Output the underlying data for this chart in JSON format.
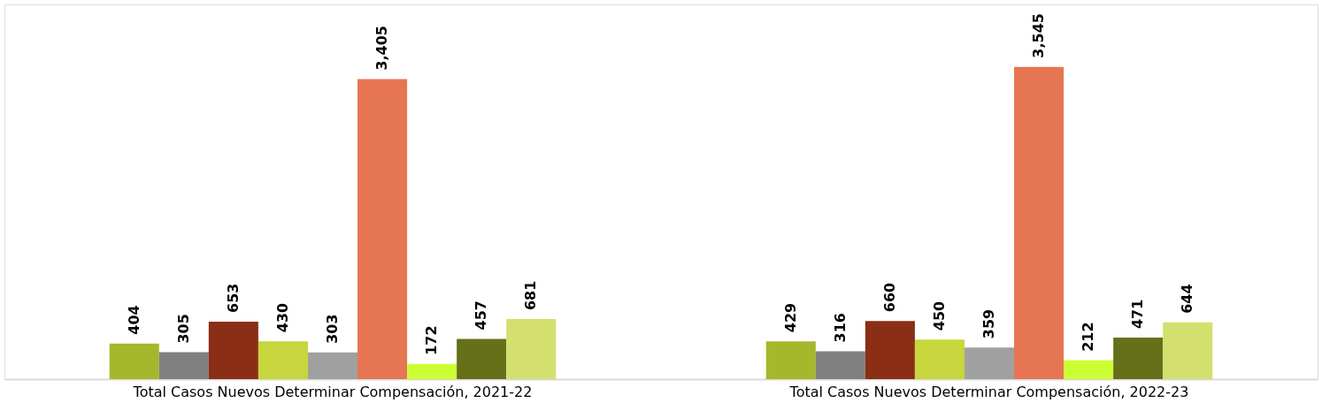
{
  "chart_data": {
    "type": "bar",
    "categories": [
      "Total Casos Nuevos Determinar Compensación, 2021-22",
      "Total Casos Nuevos Determinar Compensación, 2022-23"
    ],
    "series": [
      {
        "color": "#a5b72a",
        "values": [
          404,
          429
        ],
        "value_labels": [
          "404",
          "429"
        ]
      },
      {
        "color": "#808080",
        "values": [
          305,
          316
        ],
        "value_labels": [
          "305",
          "316"
        ]
      },
      {
        "color": "#8b2e16",
        "values": [
          653,
          660
        ],
        "value_labels": [
          "653",
          "660"
        ]
      },
      {
        "color": "#c6d63c",
        "values": [
          430,
          450
        ],
        "value_labels": [
          "430",
          "450"
        ]
      },
      {
        "color": "#a0a0a0",
        "values": [
          303,
          359
        ],
        "value_labels": [
          "303",
          "359"
        ]
      },
      {
        "color": "#e67553",
        "values": [
          3405,
          3545
        ],
        "value_labels": [
          "3,405",
          "3,545"
        ]
      },
      {
        "color": "#ccff33",
        "values": [
          172,
          212
        ],
        "value_labels": [
          "172",
          "212"
        ]
      },
      {
        "color": "#667019",
        "values": [
          457,
          471
        ],
        "value_labels": [
          "457",
          "471"
        ]
      },
      {
        "color": "#d4e06e",
        "values": [
          681,
          644
        ],
        "value_labels": [
          "681",
          "644"
        ]
      }
    ]
  }
}
